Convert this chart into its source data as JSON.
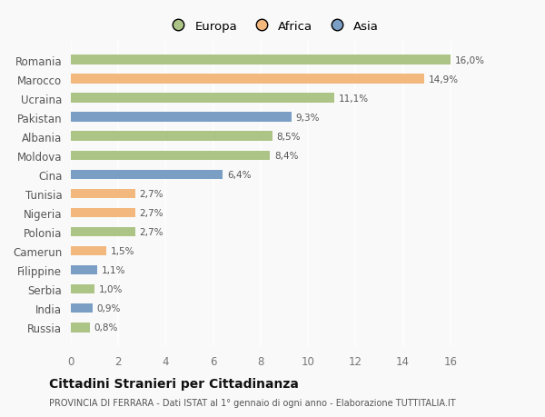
{
  "countries": [
    "Romania",
    "Marocco",
    "Ucraina",
    "Pakistan",
    "Albania",
    "Moldova",
    "Cina",
    "Tunisia",
    "Nigeria",
    "Polonia",
    "Camerun",
    "Filippine",
    "Serbia",
    "India",
    "Russia"
  ],
  "values": [
    16.0,
    14.9,
    11.1,
    9.3,
    8.5,
    8.4,
    6.4,
    2.7,
    2.7,
    2.7,
    1.5,
    1.1,
    1.0,
    0.9,
    0.8
  ],
  "labels": [
    "16,0%",
    "14,9%",
    "11,1%",
    "9,3%",
    "8,5%",
    "8,4%",
    "6,4%",
    "2,7%",
    "2,7%",
    "2,7%",
    "1,5%",
    "1,1%",
    "1,0%",
    "0,9%",
    "0,8%"
  ],
  "continents": [
    "Europa",
    "Africa",
    "Europa",
    "Asia",
    "Europa",
    "Europa",
    "Asia",
    "Africa",
    "Africa",
    "Europa",
    "Africa",
    "Asia",
    "Europa",
    "Asia",
    "Europa"
  ],
  "colors": {
    "Europa": "#adc487",
    "Africa": "#f2b87e",
    "Asia": "#7b9fc4"
  },
  "title": "Cittadini Stranieri per Cittadinanza",
  "subtitle": "PROVINCIA DI FERRARA - Dati ISTAT al 1° gennaio di ogni anno - Elaborazione TUTTITALIA.IT",
  "xlim": [
    0,
    17
  ],
  "xticks": [
    0,
    2,
    4,
    6,
    8,
    10,
    12,
    14,
    16
  ],
  "background_color": "#f9f9f9",
  "grid_color": "#ffffff",
  "bar_height": 0.5
}
